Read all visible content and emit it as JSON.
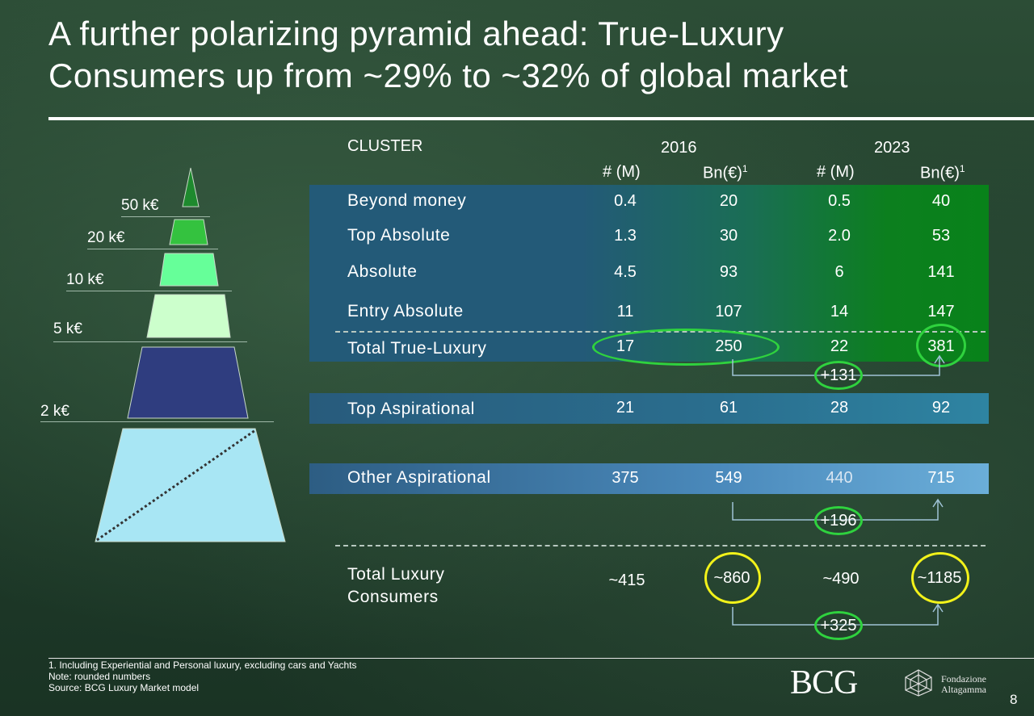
{
  "title_line1": "A further polarizing pyramid ahead: True-Luxury",
  "title_line2": "Consumers up from ~29% to ~32% of global market",
  "table": {
    "cluster_label": "CLUSTER",
    "year_2016": "2016",
    "year_2023": "2023",
    "col_count": "# (M)",
    "col_spend": "Bn(€)",
    "footnote_mark": "1",
    "rows": [
      {
        "label": "Beyond money",
        "c2016": "0.4",
        "s2016": "20",
        "c2023": "0.5",
        "s2023": "40"
      },
      {
        "label": "Top Absolute",
        "c2016": "1.3",
        "s2016": "30",
        "c2023": "2.0",
        "s2023": "53"
      },
      {
        "label": "Absolute",
        "c2016": "4.5",
        "s2016": "93",
        "c2023": "6",
        "s2023": "141"
      },
      {
        "label": "Entry Absolute",
        "c2016": "11",
        "s2016": "107",
        "c2023": "14",
        "s2023": "147"
      },
      {
        "label": "Total True-Luxury",
        "c2016": "17",
        "s2016": "250",
        "c2023": "22",
        "s2023": "381"
      },
      {
        "label": "Top Aspirational",
        "c2016": "21",
        "s2016": "61",
        "c2023": "28",
        "s2023": "92"
      },
      {
        "label": "Other Aspirational",
        "c2016": "375",
        "s2016": "549",
        "c2023": "440",
        "s2023": "715"
      }
    ],
    "total_label_line1": "Total Luxury",
    "total_label_line2": "Consumers",
    "total_c2016": "~415",
    "total_s2016": "~860",
    "total_c2023": "~490",
    "total_s2023": "~1185"
  },
  "deltas": {
    "true_luxury": "+131",
    "other_aspirational": "+196",
    "total": "+325"
  },
  "pyramid_levels": [
    "50 k€",
    "20 k€",
    "10 k€",
    "5 k€",
    "2 k€"
  ],
  "colors": {
    "tier_beyond": "#1e8a2e",
    "tier_top_absolute": "#34c23f",
    "tier_absolute": "#66ff99",
    "tier_entry": "#ccffcc",
    "tier_top_aspirational": "#2f3d7f",
    "tier_other_aspirational": "#a8e6f4",
    "ring_green": "#2fd23e",
    "ring_yellow": "#f2f21a"
  },
  "footnotes": {
    "note1": "1. Including Experiential and Personal luxury, excluding cars and Yachts",
    "note2": "Note: rounded numbers",
    "source": "Source: BCG Luxury Market model"
  },
  "logos": {
    "bcg": "BCG",
    "fondazione_line1": "Fondazione",
    "fondazione_line2": "Altagamma"
  },
  "page_number": "8"
}
